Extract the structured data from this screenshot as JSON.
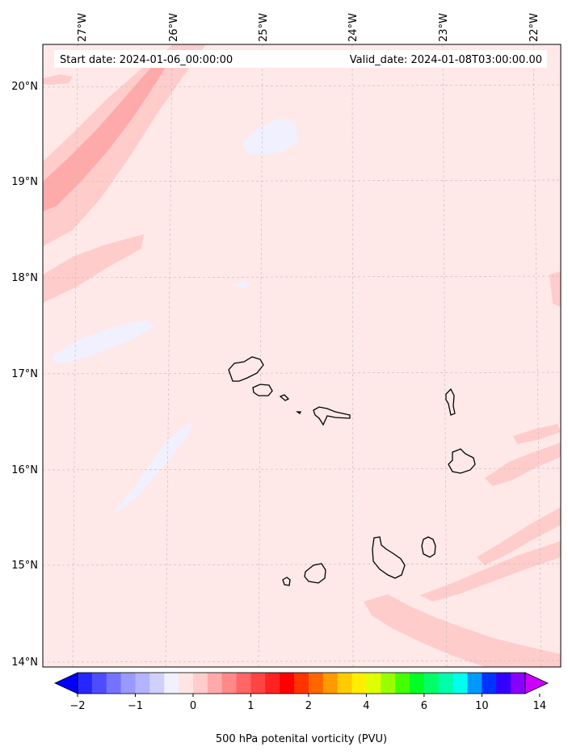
{
  "header": {
    "start_date": "Start date: 2024-01-06_00:00:00",
    "valid_date": "Valid_date: 2024-01-08T03:00:00.00"
  },
  "map": {
    "lon_labels": [
      "27°W",
      "26°W",
      "25°W",
      "24°W",
      "23°W",
      "22°W"
    ],
    "lat_labels": [
      "20°N",
      "19°N",
      "18°N",
      "17°N",
      "16°N",
      "15°N",
      "14°N"
    ],
    "gridlines": true,
    "region": "Cape Verde islands"
  },
  "colorbar": {
    "ticks": [
      "−2",
      "−1",
      "0",
      "1",
      "2",
      "4",
      "6",
      "10",
      "14"
    ],
    "label": "500 hPa potenital vorticity (PVU)",
    "colors": [
      "#0000ff",
      "#2626ff",
      "#4d4dff",
      "#7373ff",
      "#9999ff",
      "#b3b3ff",
      "#d0d0ff",
      "#f0f0ff",
      "#ffe4e4",
      "#ffcccc",
      "#ffaaaa",
      "#ff8888",
      "#ff6666",
      "#ff4444",
      "#ff2222",
      "#ff0000",
      "#ff3300",
      "#ff6600",
      "#ff9900",
      "#ffcc00",
      "#ffee00",
      "#ddff00",
      "#99ff00",
      "#44ff00",
      "#00ff22",
      "#00ff66",
      "#00ffaa",
      "#00ffee",
      "#0099ff",
      "#0033ff",
      "#3300ff",
      "#8800ff",
      "#cc00ff"
    ]
  },
  "colors": {
    "background_field": "#ffe8e8",
    "light_red": "#ffcccc",
    "medium_red": "#ffaaaa",
    "light_blue": "#f0f0ff",
    "coast": "#000000"
  }
}
